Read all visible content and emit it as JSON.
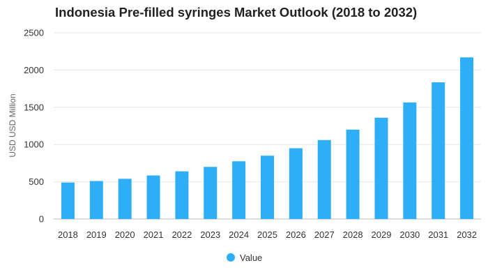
{
  "chart_data": {
    "type": "bar",
    "title": "Indonesia Pre-filled syringes Market Outlook (2018 to 2032)",
    "xlabel": "",
    "ylabel": "USD USD Million",
    "categories": [
      "2018",
      "2019",
      "2020",
      "2021",
      "2022",
      "2023",
      "2024",
      "2025",
      "2026",
      "2027",
      "2028",
      "2029",
      "2030",
      "2031",
      "2032"
    ],
    "series": [
      {
        "name": "Value",
        "values": [
          490,
          510,
          540,
          585,
          640,
          700,
          775,
          850,
          950,
          1060,
          1200,
          1360,
          1565,
          1835,
          2170
        ]
      }
    ],
    "ylim": [
      0,
      2500
    ],
    "yticks": [
      0,
      500,
      1000,
      1500,
      2000,
      2500
    ],
    "grid": true,
    "legend_position": "bottom-center",
    "bar_color": "#2eaef6"
  }
}
